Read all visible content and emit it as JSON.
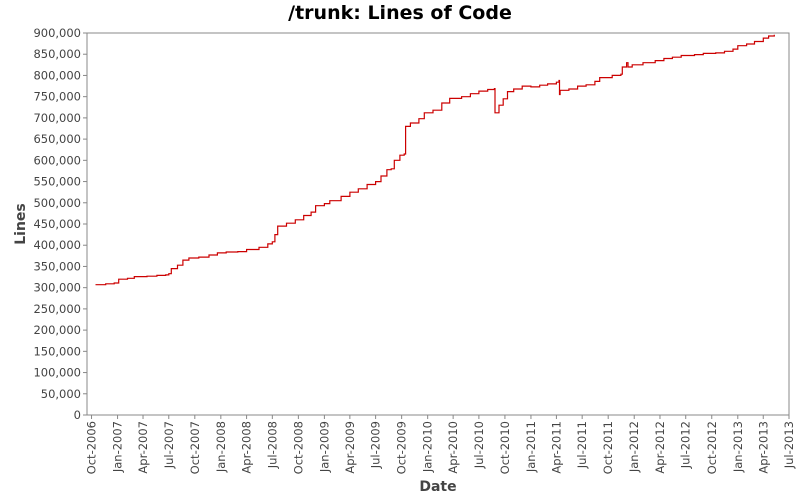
{
  "chart_data": {
    "type": "line",
    "title": "/trunk: Lines of Code",
    "xlabel": "Date",
    "ylabel": "Lines",
    "ylim": [
      0,
      900000
    ],
    "xlim": [
      "2006-09-15",
      "2013-07-01"
    ],
    "y_ticks": [
      "0",
      "50,000",
      "100,000",
      "150,000",
      "200,000",
      "250,000",
      "300,000",
      "350,000",
      "400,000",
      "450,000",
      "500,000",
      "550,000",
      "600,000",
      "650,000",
      "700,000",
      "750,000",
      "800,000",
      "850,000",
      "900,000"
    ],
    "y_tick_values": [
      0,
      50000,
      100000,
      150000,
      200000,
      250000,
      300000,
      350000,
      400000,
      450000,
      500000,
      550000,
      600000,
      650000,
      700000,
      750000,
      800000,
      850000,
      900000
    ],
    "x_ticks": [
      "Oct-2006",
      "Jan-2007",
      "Apr-2007",
      "Jul-2007",
      "Oct-2007",
      "Jan-2008",
      "Apr-2008",
      "Jul-2008",
      "Oct-2008",
      "Jan-2009",
      "Apr-2009",
      "Jul-2009",
      "Oct-2009",
      "Jan-2010",
      "Apr-2010",
      "Jul-2010",
      "Oct-2010",
      "Jan-2011",
      "Apr-2011",
      "Jul-2011",
      "Oct-2011",
      "Jan-2012",
      "Apr-2012",
      "Jul-2012",
      "Oct-2012",
      "Jan-2013",
      "Apr-2013",
      "Jul-2013"
    ],
    "x_tick_values": [
      "2006-10-01",
      "2007-01-01",
      "2007-04-01",
      "2007-07-01",
      "2007-10-01",
      "2008-01-01",
      "2008-04-01",
      "2008-07-01",
      "2008-10-01",
      "2009-01-01",
      "2009-04-01",
      "2009-07-01",
      "2009-10-01",
      "2010-01-01",
      "2010-04-01",
      "2010-07-01",
      "2010-10-01",
      "2011-01-01",
      "2011-04-01",
      "2011-07-01",
      "2011-10-01",
      "2012-01-01",
      "2012-04-01",
      "2012-07-01",
      "2012-10-01",
      "2013-01-01",
      "2013-04-01",
      "2013-07-01"
    ],
    "series": [
      {
        "color": "#cc0000",
        "points": [
          [
            "2006-10-15",
            307000
          ],
          [
            "2006-11-20",
            309000
          ],
          [
            "2006-12-20",
            311000
          ],
          [
            "2007-01-05",
            320000
          ],
          [
            "2007-02-05",
            322000
          ],
          [
            "2007-03-01",
            326000
          ],
          [
            "2007-04-15",
            327000
          ],
          [
            "2007-05-20",
            329000
          ],
          [
            "2007-06-20",
            330000
          ],
          [
            "2007-07-01",
            333000
          ],
          [
            "2007-07-10",
            345000
          ],
          [
            "2007-08-01",
            353000
          ],
          [
            "2007-08-20",
            365000
          ],
          [
            "2007-09-10",
            370000
          ],
          [
            "2007-10-15",
            372000
          ],
          [
            "2007-11-20",
            377000
          ],
          [
            "2007-12-20",
            382000
          ],
          [
            "2008-01-20",
            384000
          ],
          [
            "2008-03-01",
            385000
          ],
          [
            "2008-04-01",
            390000
          ],
          [
            "2008-05-15",
            395000
          ],
          [
            "2008-06-15",
            403000
          ],
          [
            "2008-07-01",
            408000
          ],
          [
            "2008-07-10",
            425000
          ],
          [
            "2008-07-20",
            445000
          ],
          [
            "2008-08-20",
            452000
          ],
          [
            "2008-09-20",
            460000
          ],
          [
            "2008-10-20",
            470000
          ],
          [
            "2008-11-15",
            478000
          ],
          [
            "2008-12-01",
            493000
          ],
          [
            "2009-01-01",
            498000
          ],
          [
            "2009-01-20",
            505000
          ],
          [
            "2009-03-01",
            515000
          ],
          [
            "2009-04-01",
            525000
          ],
          [
            "2009-05-01",
            533000
          ],
          [
            "2009-06-01",
            543000
          ],
          [
            "2009-07-01",
            550000
          ],
          [
            "2009-07-20",
            563000
          ],
          [
            "2009-08-10",
            578000
          ],
          [
            "2009-08-25",
            580000
          ],
          [
            "2009-09-05",
            600000
          ],
          [
            "2009-09-25",
            612000
          ],
          [
            "2009-10-10",
            615000
          ],
          [
            "2009-10-15",
            680000
          ],
          [
            "2009-11-01",
            688000
          ],
          [
            "2009-12-01",
            698000
          ],
          [
            "2009-12-20",
            712000
          ],
          [
            "2010-01-20",
            718000
          ],
          [
            "2010-02-20",
            735000
          ],
          [
            "2010-03-20",
            746000
          ],
          [
            "2010-05-01",
            750000
          ],
          [
            "2010-06-01",
            757000
          ],
          [
            "2010-07-01",
            763000
          ],
          [
            "2010-08-01",
            767000
          ],
          [
            "2010-08-25",
            769000
          ],
          [
            "2010-08-27",
            712000
          ],
          [
            "2010-09-10",
            730000
          ],
          [
            "2010-09-25",
            745000
          ],
          [
            "2010-10-10",
            762000
          ],
          [
            "2010-11-01",
            768000
          ],
          [
            "2010-12-01",
            775000
          ],
          [
            "2011-01-01",
            773000
          ],
          [
            "2011-02-01",
            777000
          ],
          [
            "2011-03-01",
            780000
          ],
          [
            "2011-04-01",
            784000
          ],
          [
            "2011-04-10",
            788000
          ],
          [
            "2011-04-12",
            755000
          ],
          [
            "2011-04-14",
            765000
          ],
          [
            "2011-05-15",
            768000
          ],
          [
            "2011-06-15",
            775000
          ],
          [
            "2011-07-15",
            778000
          ],
          [
            "2011-08-15",
            786000
          ],
          [
            "2011-09-01",
            795000
          ],
          [
            "2011-10-15",
            800000
          ],
          [
            "2011-11-15",
            803000
          ],
          [
            "2011-11-20",
            820000
          ],
          [
            "2011-12-05",
            830000
          ],
          [
            "2011-12-10",
            820000
          ],
          [
            "2011-12-25",
            825000
          ],
          [
            "2012-02-01",
            830000
          ],
          [
            "2012-03-15",
            835000
          ],
          [
            "2012-04-15",
            840000
          ],
          [
            "2012-05-15",
            843000
          ],
          [
            "2012-06-15",
            847000
          ],
          [
            "2012-08-01",
            849000
          ],
          [
            "2012-09-01",
            852000
          ],
          [
            "2012-10-15",
            853000
          ],
          [
            "2012-11-15",
            857000
          ],
          [
            "2012-12-15",
            862000
          ],
          [
            "2013-01-01",
            870000
          ],
          [
            "2013-02-01",
            874000
          ],
          [
            "2013-03-01",
            880000
          ],
          [
            "2013-04-01",
            888000
          ],
          [
            "2013-04-20",
            893000
          ],
          [
            "2013-05-10",
            896000
          ]
        ]
      }
    ]
  }
}
